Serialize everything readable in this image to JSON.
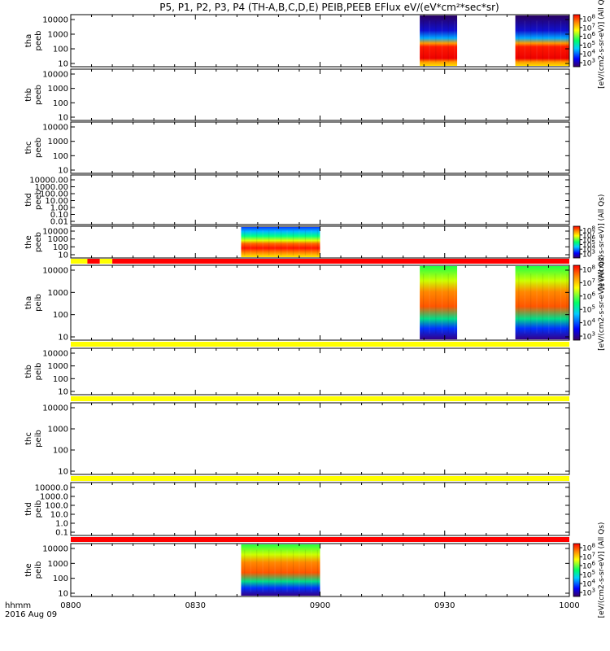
{
  "chart_data": {
    "type": "heatmap",
    "title": "P5, P1, P2, P3, P4 (TH-A,B,C,D,E) PEIB,PEEB EFlux eV/(eV*cm²*sec*sr)",
    "x_ticks": [
      "0800",
      "0830",
      "0900",
      "0930",
      "1000"
    ],
    "x_tick_minutes": [
      0,
      30,
      60,
      90,
      120
    ],
    "x_range_minutes": [
      0,
      120
    ],
    "footer_left": [
      "hhmm",
      "2016 Aug 09"
    ],
    "colorbar_unit": "[eV/(cm2-s-sr-eV)] (All Qs)",
    "colorbar_exponents": [
      "8",
      "7",
      "6",
      "5",
      "4",
      "3"
    ],
    "panels": [
      {
        "probe": "tha",
        "type": "peeb",
        "yticks": [
          "10000",
          "1000",
          "100",
          "10"
        ],
        "colorbar": true,
        "status_bar": null,
        "data_spans": [
          [
            84,
            93,
            "top-deep"
          ],
          [
            107,
            120,
            "top-deep"
          ]
        ]
      },
      {
        "probe": "thb",
        "type": "peeb",
        "yticks": [
          "10000",
          "1000",
          "100",
          "10"
        ],
        "colorbar": false,
        "status_bar": null,
        "data_spans": []
      },
      {
        "probe": "thc",
        "type": "peeb",
        "yticks": [
          "10000",
          "1000",
          "100",
          "10"
        ],
        "colorbar": false,
        "status_bar": null,
        "data_spans": []
      },
      {
        "probe": "thd",
        "type": "peeb",
        "yticks": [
          "10000.00",
          "1000.00",
          "100.00",
          "10.00",
          "1.00",
          "0.10",
          "0.01"
        ],
        "colorbar": false,
        "status_bar": null,
        "data_spans": []
      },
      {
        "probe": "the",
        "type": "peeb",
        "yticks": [
          "10000",
          "1000",
          "100",
          "10"
        ],
        "colorbar": true,
        "status_bar": null,
        "data_spans": [
          [
            41,
            60,
            "top-green"
          ]
        ]
      },
      {
        "probe": "tha",
        "type": "peib",
        "yticks": [
          "10000",
          "1000",
          "100",
          "10"
        ],
        "colorbar": true,
        "status_bar": [
          [
            "#ffff00",
            0,
            4
          ],
          [
            "#ff0000",
            4,
            7
          ],
          [
            "#ffff00",
            7,
            10
          ],
          [
            "#ff0000",
            10,
            120
          ]
        ],
        "data_spans": [
          [
            84,
            93,
            "ion"
          ],
          [
            107,
            120,
            "ion"
          ]
        ]
      },
      {
        "probe": "thb",
        "type": "peib",
        "yticks": [
          "10000",
          "1000",
          "100",
          "10"
        ],
        "colorbar": false,
        "status_bar": [
          [
            "#ffff00",
            0,
            120
          ]
        ],
        "data_spans": []
      },
      {
        "probe": "thc",
        "type": "peib",
        "yticks": [
          "10000",
          "1000",
          "100",
          "10"
        ],
        "colorbar": false,
        "status_bar": [
          [
            "#ffff00",
            0,
            120
          ]
        ],
        "data_spans": []
      },
      {
        "probe": "thd",
        "type": "peib",
        "yticks": [
          "10000.0",
          "1000.0",
          "100.0",
          "10.0",
          "1.0",
          "0.1"
        ],
        "colorbar": false,
        "status_bar": [
          [
            "#ffff00",
            0,
            120
          ]
        ],
        "data_spans": []
      },
      {
        "probe": "the",
        "type": "peib",
        "yticks": [
          "10000",
          "1000",
          "100",
          "10"
        ],
        "colorbar": true,
        "status_bar": [
          [
            "#ff0000",
            0,
            120
          ]
        ],
        "data_spans": [
          [
            41,
            60,
            "ion"
          ]
        ]
      }
    ]
  }
}
